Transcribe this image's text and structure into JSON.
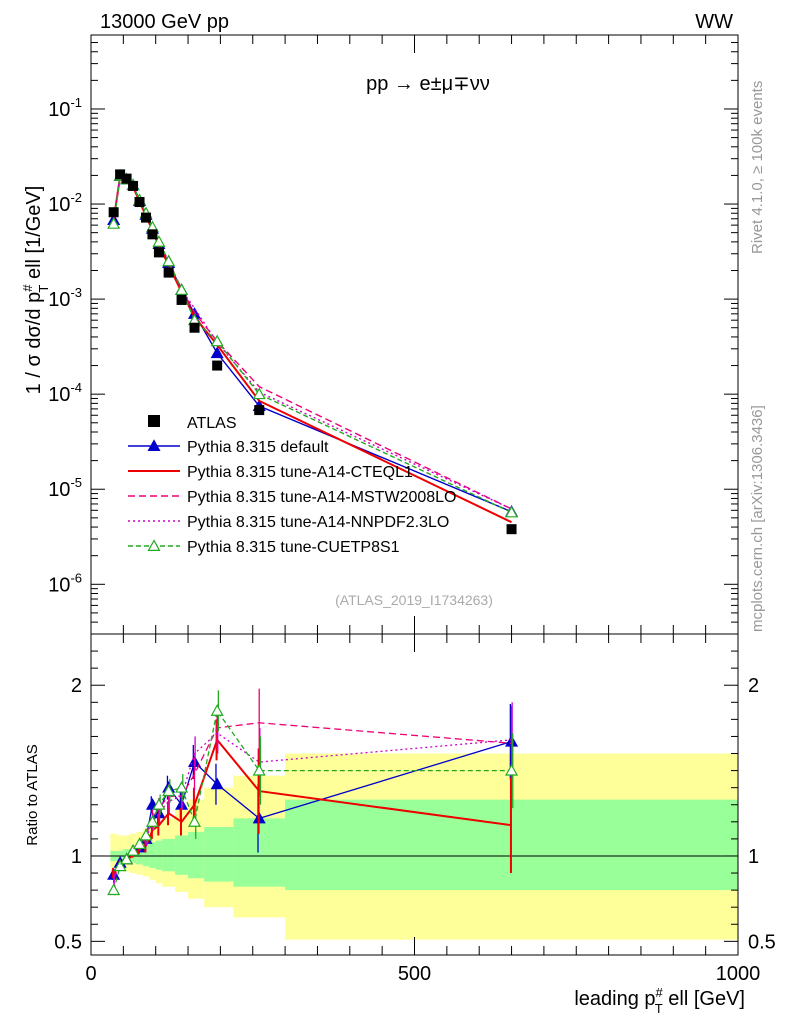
{
  "header": {
    "left_title": "13000 GeV pp",
    "right_title": "WW"
  },
  "side_labels": {
    "rivet": "Rivet 4.1.0, ≥ 100k events",
    "mcplots": "mcplots.cern.ch [arXiv:1306.3436]"
  },
  "chart_data": {
    "type": "line",
    "process_label": "pp → e±μ∓νν",
    "analysis_tag": "(ATLAS_2019_I1734263)",
    "x": [
      35,
      45,
      55,
      65,
      75,
      85,
      95,
      105,
      120,
      140,
      160,
      195,
      260,
      650
    ],
    "xlim": [
      0,
      1000
    ],
    "xlabel": "leading p_T^# ell [GeV]",
    "x_tick_labels": [
      "0",
      "500",
      "1000"
    ],
    "main_panel": {
      "ylabel": "1 / σ  dσ/d p_T^# ell [1/GeV]",
      "yscale": "log",
      "ylim": [
        3e-07,
        0.6
      ],
      "y_tick_labels": [
        "10^-6",
        "10^-5",
        "10^-4",
        "10^-3",
        "10^-2",
        "10^-1"
      ],
      "data": {
        "name": "ATLAS",
        "values": [
          0.0082,
          0.0205,
          0.0185,
          0.0155,
          0.0105,
          0.0072,
          0.0048,
          0.0031,
          0.0019,
          0.00098,
          0.0005,
          0.0002,
          6.8e-05,
          3.8e-06
        ]
      },
      "series": [
        {
          "name": "Pythia 8.315 default",
          "color": "#0000cc",
          "dash": "",
          "marker": "triangle-filled",
          "values": [
            0.0068,
            0.0198,
            0.0182,
            0.0158,
            0.0108,
            0.0077,
            0.0055,
            0.0038,
            0.0024,
            0.00125,
            0.0007,
            0.00027,
            7.5e-05,
            5.8e-06
          ]
        },
        {
          "name": "Pythia 8.315 tune-A14-CTEQL1",
          "color": "#ee0000",
          "dash": "",
          "marker": "none",
          "values": [
            0.0068,
            0.0195,
            0.0178,
            0.0152,
            0.0106,
            0.0075,
            0.0053,
            0.0036,
            0.0023,
            0.00118,
            0.00065,
            0.00033,
            8.5e-05,
            4.5e-06
          ]
        },
        {
          "name": "Pythia 8.315 tune-A14-MSTW2008LO",
          "color": "#ee0077",
          "dash": "7,4",
          "marker": "none",
          "values": [
            0.0068,
            0.0198,
            0.018,
            0.0156,
            0.011,
            0.008,
            0.0057,
            0.004,
            0.0025,
            0.00128,
            0.00072,
            0.00036,
            0.00012,
            6.2e-06
          ]
        },
        {
          "name": "Pythia 8.315 tune-A14-NNPDF2.3LO",
          "color": "#cc00cc",
          "dash": "2,3",
          "marker": "none",
          "values": [
            0.0067,
            0.0197,
            0.018,
            0.0158,
            0.011,
            0.0079,
            0.0056,
            0.0039,
            0.0025,
            0.00125,
            0.0008,
            0.00035,
            0.000105,
            6.2e-06
          ]
        },
        {
          "name": "Pythia 8.315 tune-CUETP8S1",
          "color": "#22aa22",
          "dash": "5,3",
          "marker": "triangle-open",
          "values": [
            0.0062,
            0.0198,
            0.0182,
            0.0158,
            0.011,
            0.008,
            0.0057,
            0.004,
            0.0025,
            0.00125,
            0.0006,
            0.00036,
            0.0001,
            5.7e-06
          ]
        }
      ]
    },
    "ratio_panel": {
      "ylabel": "Ratio to ATLAS",
      "ylim": [
        0.42,
        2.3
      ],
      "y_tick_labels": [
        "0.5",
        "1",
        "2"
      ],
      "band_edges": [
        30,
        40,
        50,
        60,
        70,
        80,
        90,
        100,
        110,
        130,
        150,
        175,
        220,
        300,
        1000
      ],
      "inner_band_lo": [
        0.97,
        0.97,
        0.96,
        0.96,
        0.95,
        0.94,
        0.93,
        0.92,
        0.91,
        0.89,
        0.87,
        0.85,
        0.82,
        0.8
      ],
      "inner_band_hi": [
        1.03,
        1.03,
        1.04,
        1.04,
        1.06,
        1.07,
        1.08,
        1.09,
        1.1,
        1.12,
        1.14,
        1.17,
        1.22,
        1.33
      ],
      "outer_band_lo": [
        0.93,
        0.92,
        0.91,
        0.9,
        0.89,
        0.88,
        0.86,
        0.84,
        0.82,
        0.79,
        0.75,
        0.7,
        0.64,
        0.51
      ],
      "outer_band_hi": [
        1.13,
        1.12,
        1.12,
        1.13,
        1.14,
        1.16,
        1.18,
        1.2,
        1.22,
        1.27,
        1.33,
        1.4,
        1.47,
        1.6
      ],
      "series": [
        {
          "name": "Pythia 8.315 default",
          "values": [
            0.89,
            0.96,
            0.98,
            1.03,
            1.05,
            1.1,
            1.3,
            1.25,
            1.4,
            1.3,
            1.55,
            1.42,
            1.22,
            1.67
          ],
          "errors": [
            0.03,
            0.02,
            0.02,
            0.02,
            0.03,
            0.04,
            0.05,
            0.06,
            0.07,
            0.08,
            0.1,
            0.12,
            0.2,
            0.22
          ]
        },
        {
          "name": "Pythia 8.315 tune-A14-CTEQL1",
          "values": [
            0.9,
            0.95,
            0.97,
            1.01,
            1.04,
            1.06,
            1.15,
            1.18,
            1.25,
            1.2,
            1.3,
            1.68,
            1.38,
            1.18
          ],
          "errors": [
            0.03,
            0.02,
            0.02,
            0.02,
            0.03,
            0.04,
            0.05,
            0.06,
            0.07,
            0.08,
            0.1,
            0.12,
            0.25,
            0.28
          ]
        },
        {
          "name": "Pythia 8.315 tune-A14-MSTW2008LO",
          "values": [
            0.87,
            0.96,
            0.99,
            1.04,
            1.07,
            1.12,
            1.22,
            1.28,
            1.35,
            1.35,
            1.48,
            1.75,
            1.78,
            1.66
          ],
          "errors": [
            0.03,
            0.02,
            0.02,
            0.02,
            0.03,
            0.04,
            0.05,
            0.06,
            0.07,
            0.08,
            0.1,
            0.12,
            0.2,
            0.22
          ]
        },
        {
          "name": "Pythia 8.315 tune-A14-NNPDF2.3LO",
          "values": [
            0.86,
            0.95,
            0.98,
            1.04,
            1.06,
            1.1,
            1.2,
            1.25,
            1.32,
            1.35,
            1.6,
            1.72,
            1.55,
            1.68
          ],
          "errors": [
            0.03,
            0.02,
            0.02,
            0.02,
            0.03,
            0.04,
            0.05,
            0.06,
            0.07,
            0.08,
            0.1,
            0.12,
            0.2,
            0.22
          ]
        },
        {
          "name": "Pythia 8.315 tune-CUETP8S1",
          "values": [
            0.8,
            0.94,
            0.98,
            1.03,
            1.07,
            1.12,
            1.2,
            1.3,
            1.38,
            1.4,
            1.2,
            1.85,
            1.5,
            1.5
          ],
          "errors": [
            0.03,
            0.02,
            0.02,
            0.02,
            0.03,
            0.04,
            0.05,
            0.06,
            0.07,
            0.08,
            0.1,
            0.12,
            0.2,
            0.22
          ]
        }
      ]
    },
    "legend": {
      "position": "lower-left"
    }
  }
}
